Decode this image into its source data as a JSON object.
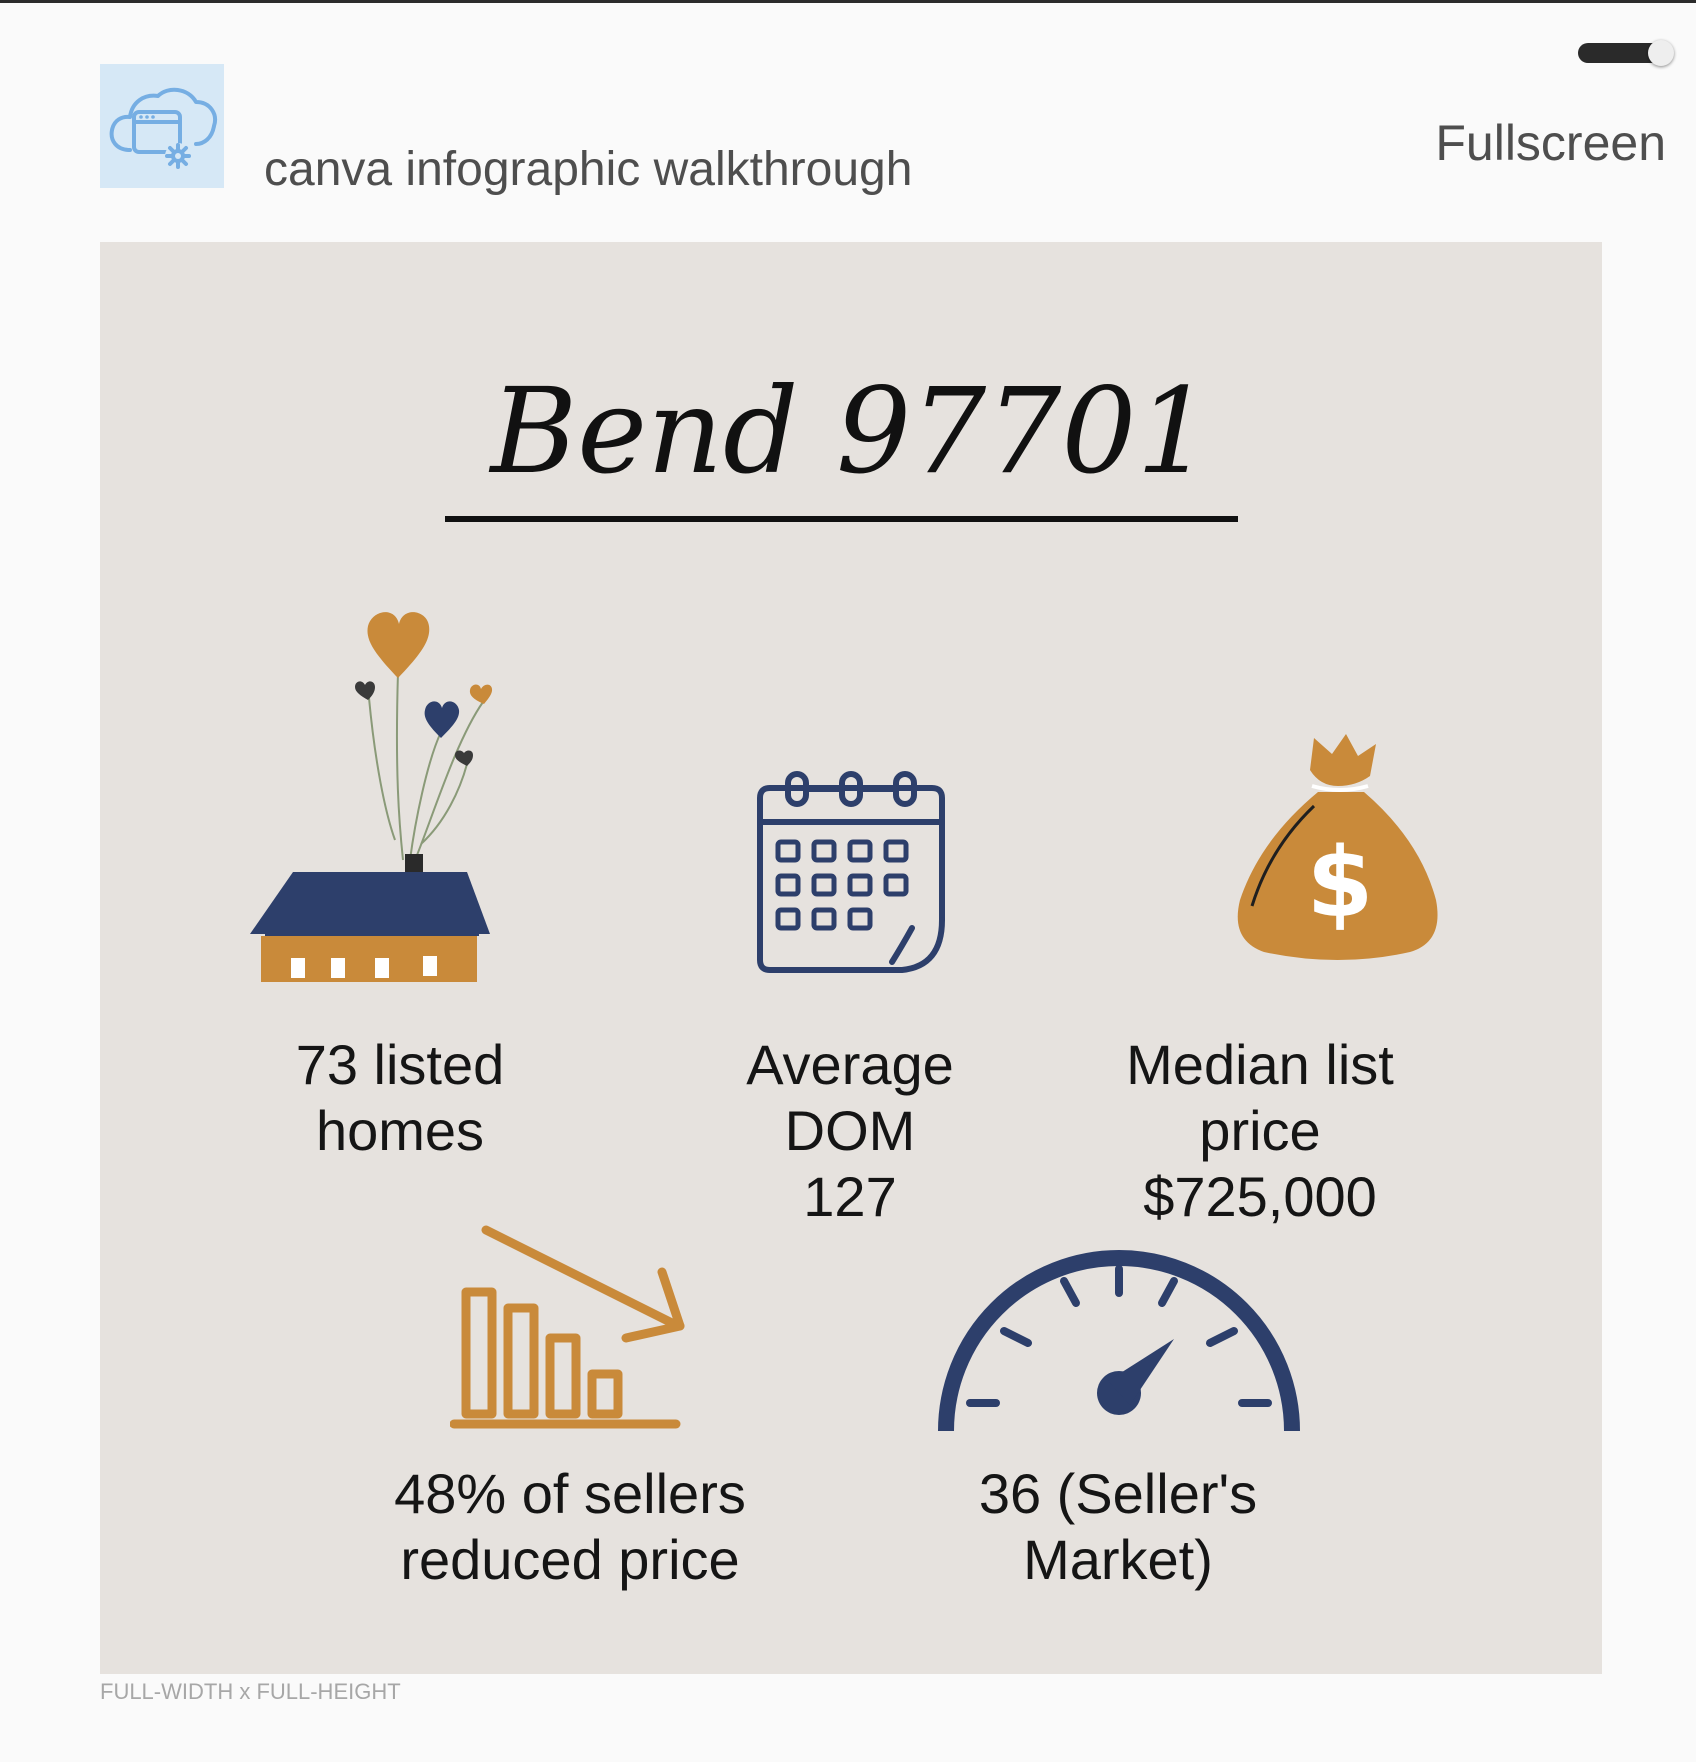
{
  "app": {
    "title": "canva infographic walkthrough",
    "icon": "cloud-settings-icon",
    "fullscreen_label": "Fullscreen",
    "toggle_on": true,
    "size_label": "FULL-WIDTH x FULL-HEIGHT"
  },
  "infographic": {
    "title": "Bend 97701",
    "stats": [
      {
        "icon": "house-icon",
        "lines": [
          "73 listed",
          "homes"
        ]
      },
      {
        "icon": "calendar-icon",
        "lines": [
          "Average",
          "DOM",
          "127"
        ]
      },
      {
        "icon": "money-bag-icon",
        "lines": [
          "Median list",
          "price",
          "$725,000"
        ]
      },
      {
        "icon": "declining-bar-chart-icon",
        "lines": [
          "48% of sellers",
          "reduced price"
        ]
      },
      {
        "icon": "speedometer-icon",
        "lines": [
          "36 (Seller's",
          "Market)"
        ]
      }
    ]
  },
  "colors": {
    "navy": "#2d3f6b",
    "orange": "#c98a3a",
    "canvas_bg": "#e6e2de",
    "page_bg": "#fafafa"
  }
}
